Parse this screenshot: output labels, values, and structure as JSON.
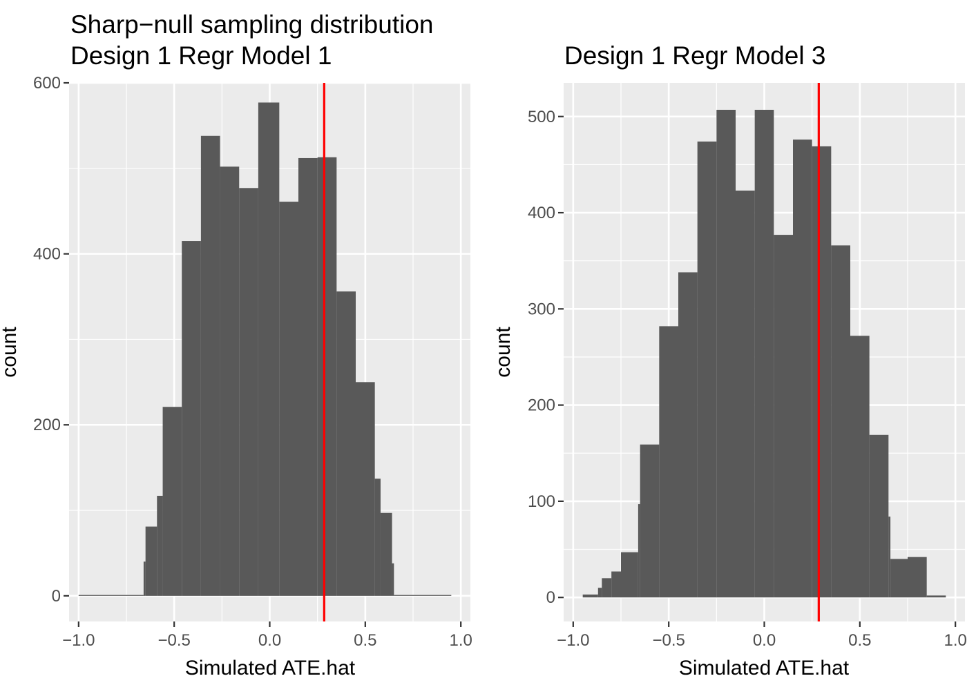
{
  "chart_data": [
    {
      "type": "bar",
      "title": "Sharp−null sampling distribution",
      "subtitle": "Design 1 Regr Model 1",
      "xlabel": "Simulated ATE.hat",
      "ylabel": "count",
      "xlim": [
        -1.05,
        1.05
      ],
      "ylim": [
        -30,
        600
      ],
      "x_ticks": [
        -1.0,
        -0.5,
        0.0,
        0.5,
        1.0
      ],
      "x_tick_labels": [
        "−1.0",
        "−0.5",
        "0.0",
        "0.5",
        "1.0"
      ],
      "y_ticks": [
        0,
        200,
        400,
        600
      ],
      "y_tick_labels": [
        "0",
        "200",
        "400",
        "600"
      ],
      "grid": true,
      "background": "#ebebeb",
      "bar_color": "#595959",
      "reference_line": {
        "x": 0.285,
        "color": "#ff0000"
      },
      "bins": [
        {
          "x0": -1.0,
          "x1": -0.66,
          "count": 1
        },
        {
          "x0": -0.66,
          "x1": -0.65,
          "count": 40
        },
        {
          "x0": -0.65,
          "x1": -0.59,
          "count": 81
        },
        {
          "x0": -0.59,
          "x1": -0.56,
          "count": 117
        },
        {
          "x0": -0.56,
          "x1": -0.46,
          "count": 221
        },
        {
          "x0": -0.46,
          "x1": -0.36,
          "count": 415
        },
        {
          "x0": -0.36,
          "x1": -0.26,
          "count": 538
        },
        {
          "x0": -0.26,
          "x1": -0.16,
          "count": 502
        },
        {
          "x0": -0.16,
          "x1": -0.06,
          "count": 477
        },
        {
          "x0": -0.06,
          "x1": 0.05,
          "count": 577
        },
        {
          "x0": 0.05,
          "x1": 0.15,
          "count": 461
        },
        {
          "x0": 0.15,
          "x1": 0.25,
          "count": 512
        },
        {
          "x0": 0.25,
          "x1": 0.35,
          "count": 513
        },
        {
          "x0": 0.35,
          "x1": 0.45,
          "count": 356
        },
        {
          "x0": 0.45,
          "x1": 0.55,
          "count": 250
        },
        {
          "x0": 0.55,
          "x1": 0.58,
          "count": 137
        },
        {
          "x0": 0.58,
          "x1": 0.64,
          "count": 97
        },
        {
          "x0": 0.64,
          "x1": 0.65,
          "count": 38
        },
        {
          "x0": 0.65,
          "x1": 0.95,
          "count": 1
        }
      ]
    },
    {
      "type": "bar",
      "title": "Design 1 Regr Model 3",
      "xlabel": "Simulated ATE.hat",
      "ylabel": "count",
      "xlim": [
        -1.05,
        1.05
      ],
      "ylim": [
        -25,
        535
      ],
      "x_ticks": [
        -1.0,
        -0.5,
        0.0,
        0.5,
        1.0
      ],
      "x_tick_labels": [
        "−1.0",
        "−0.5",
        "0.0",
        "0.5",
        "1.0"
      ],
      "y_ticks": [
        0,
        100,
        200,
        300,
        400,
        500
      ],
      "y_tick_labels": [
        "0",
        "100",
        "200",
        "300",
        "400",
        "500"
      ],
      "grid": true,
      "background": "#ebebeb",
      "bar_color": "#595959",
      "reference_line": {
        "x": 0.285,
        "color": "#ff0000"
      },
      "bins": [
        {
          "x0": -0.95,
          "x1": -0.87,
          "count": 3
        },
        {
          "x0": -0.87,
          "x1": -0.85,
          "count": 10
        },
        {
          "x0": -0.85,
          "x1": -0.8,
          "count": 20
        },
        {
          "x0": -0.8,
          "x1": -0.75,
          "count": 27
        },
        {
          "x0": -0.75,
          "x1": -0.66,
          "count": 47
        },
        {
          "x0": -0.66,
          "x1": -0.65,
          "count": 97
        },
        {
          "x0": -0.65,
          "x1": -0.55,
          "count": 159
        },
        {
          "x0": -0.55,
          "x1": -0.45,
          "count": 282
        },
        {
          "x0": -0.45,
          "x1": -0.35,
          "count": 338
        },
        {
          "x0": -0.35,
          "x1": -0.25,
          "count": 474
        },
        {
          "x0": -0.25,
          "x1": -0.15,
          "count": 507
        },
        {
          "x0": -0.15,
          "x1": -0.05,
          "count": 423
        },
        {
          "x0": -0.05,
          "x1": 0.05,
          "count": 507
        },
        {
          "x0": 0.05,
          "x1": 0.15,
          "count": 377
        },
        {
          "x0": 0.15,
          "x1": 0.25,
          "count": 476
        },
        {
          "x0": 0.25,
          "x1": 0.35,
          "count": 469
        },
        {
          "x0": 0.35,
          "x1": 0.45,
          "count": 366
        },
        {
          "x0": 0.45,
          "x1": 0.55,
          "count": 272
        },
        {
          "x0": 0.55,
          "x1": 0.65,
          "count": 169
        },
        {
          "x0": 0.65,
          "x1": 0.66,
          "count": 84
        },
        {
          "x0": 0.66,
          "x1": 0.75,
          "count": 40
        },
        {
          "x0": 0.75,
          "x1": 0.85,
          "count": 42
        },
        {
          "x0": 0.85,
          "x1": 0.95,
          "count": 2
        }
      ]
    }
  ]
}
